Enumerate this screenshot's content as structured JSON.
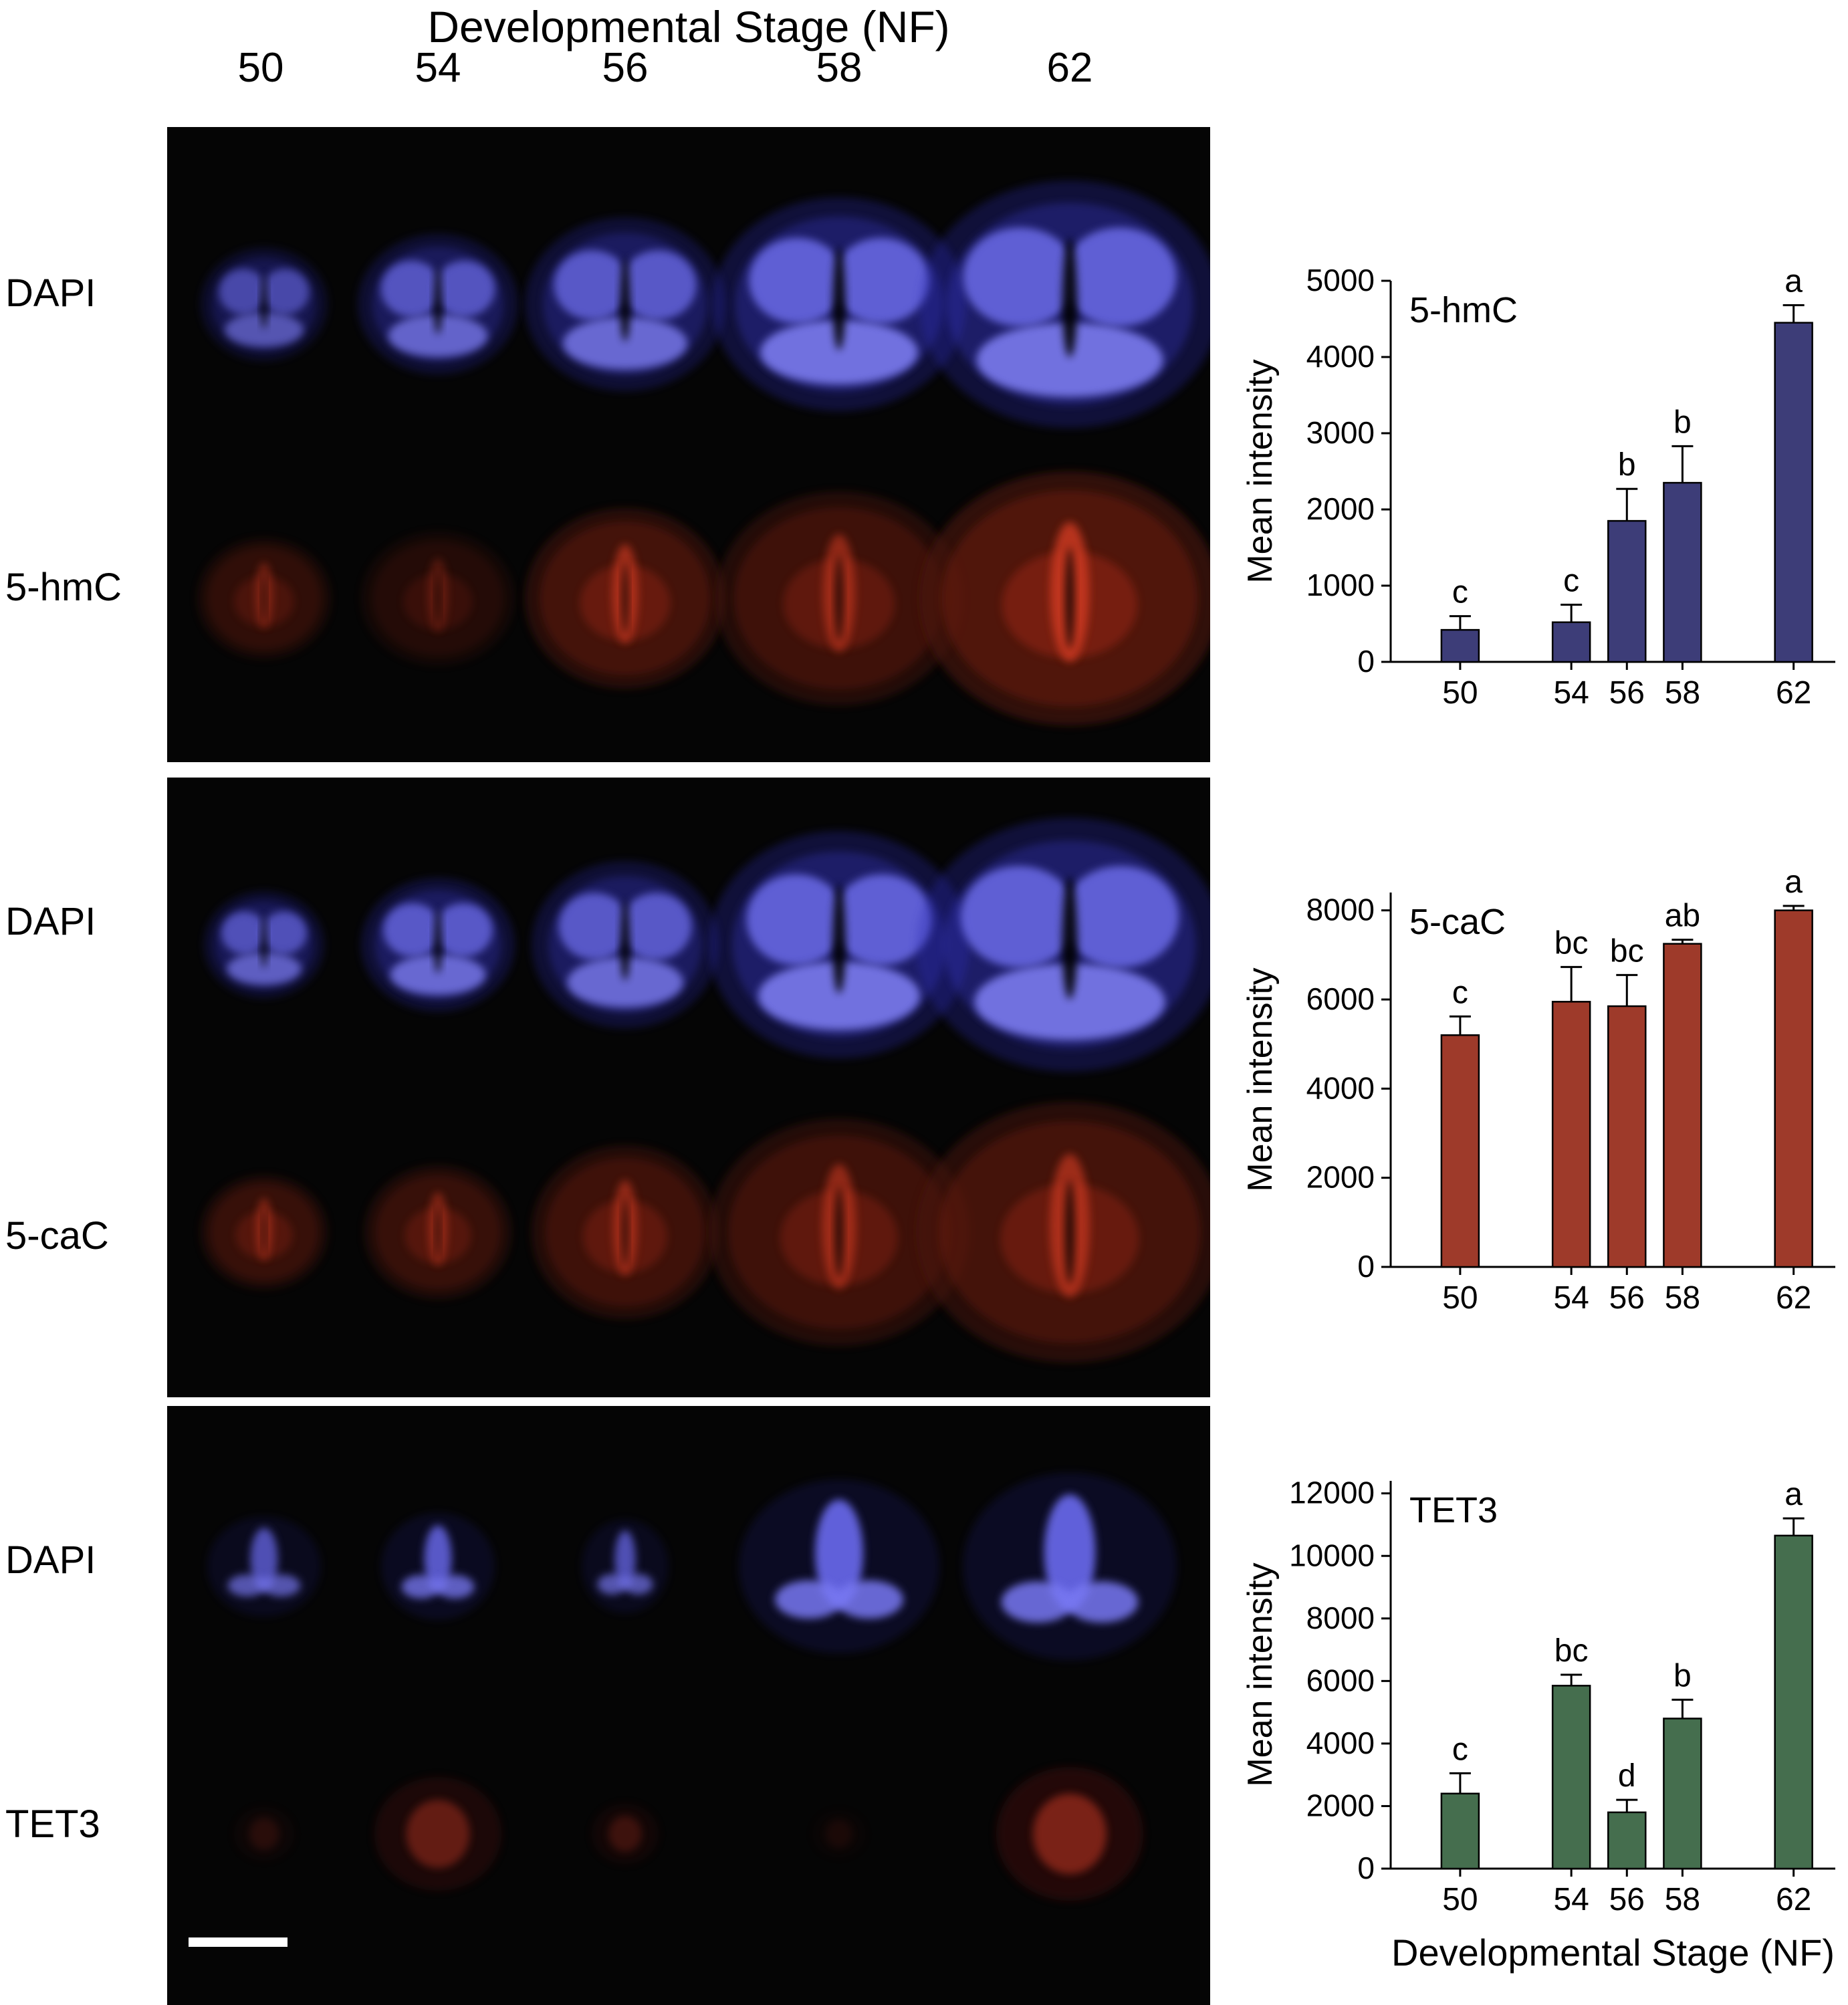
{
  "figure": {
    "title": "Developmental Stage (NF)",
    "stage_labels": [
      "50",
      "54",
      "56",
      "58",
      "62"
    ],
    "row_labels": [
      "DAPI",
      "5-hmC",
      "DAPI",
      "5-caC",
      "DAPI",
      "TET3"
    ]
  },
  "chart_data": [
    {
      "type": "bar",
      "title": "5-hmC",
      "ylabel": "Mean intensity",
      "categories": [
        50,
        54,
        56,
        58,
        62
      ],
      "values": [
        420,
        520,
        1850,
        2350,
        4450
      ],
      "errors": [
        180,
        230,
        420,
        480,
        230
      ],
      "sig_labels": [
        "c",
        "c",
        "b",
        "b",
        "a"
      ],
      "ylim": [
        0,
        5000
      ],
      "yticks": [
        0,
        1000,
        2000,
        3000,
        4000,
        5000
      ],
      "bar_color": "#3d3d78"
    },
    {
      "type": "bar",
      "title": "5-caC",
      "ylabel": "Mean intensity",
      "categories": [
        50,
        54,
        56,
        58,
        62
      ],
      "values": [
        5200,
        5950,
        5850,
        7250,
        8000
      ],
      "errors": [
        420,
        780,
        700,
        90,
        100
      ],
      "sig_labels": [
        "c",
        "bc",
        "bc",
        "ab",
        "a"
      ],
      "ylim": [
        0,
        8400
      ],
      "yticks": [
        0,
        2000,
        4000,
        6000,
        8000
      ],
      "bar_color": "#9e3a2a"
    },
    {
      "type": "bar",
      "title": "TET3",
      "ylabel": "Mean intensity",
      "xlabel": "Developmental Stage (NF)",
      "categories": [
        50,
        54,
        56,
        58,
        62
      ],
      "values": [
        2400,
        5850,
        1800,
        4800,
        10650
      ],
      "errors": [
        650,
        350,
        400,
        600,
        550
      ],
      "sig_labels": [
        "c",
        "bc",
        "d",
        "b",
        "a"
      ],
      "ylim": [
        0,
        12400
      ],
      "yticks": [
        0,
        2000,
        4000,
        6000,
        8000,
        10000,
        12000
      ],
      "bar_color": "#456e4e"
    }
  ]
}
